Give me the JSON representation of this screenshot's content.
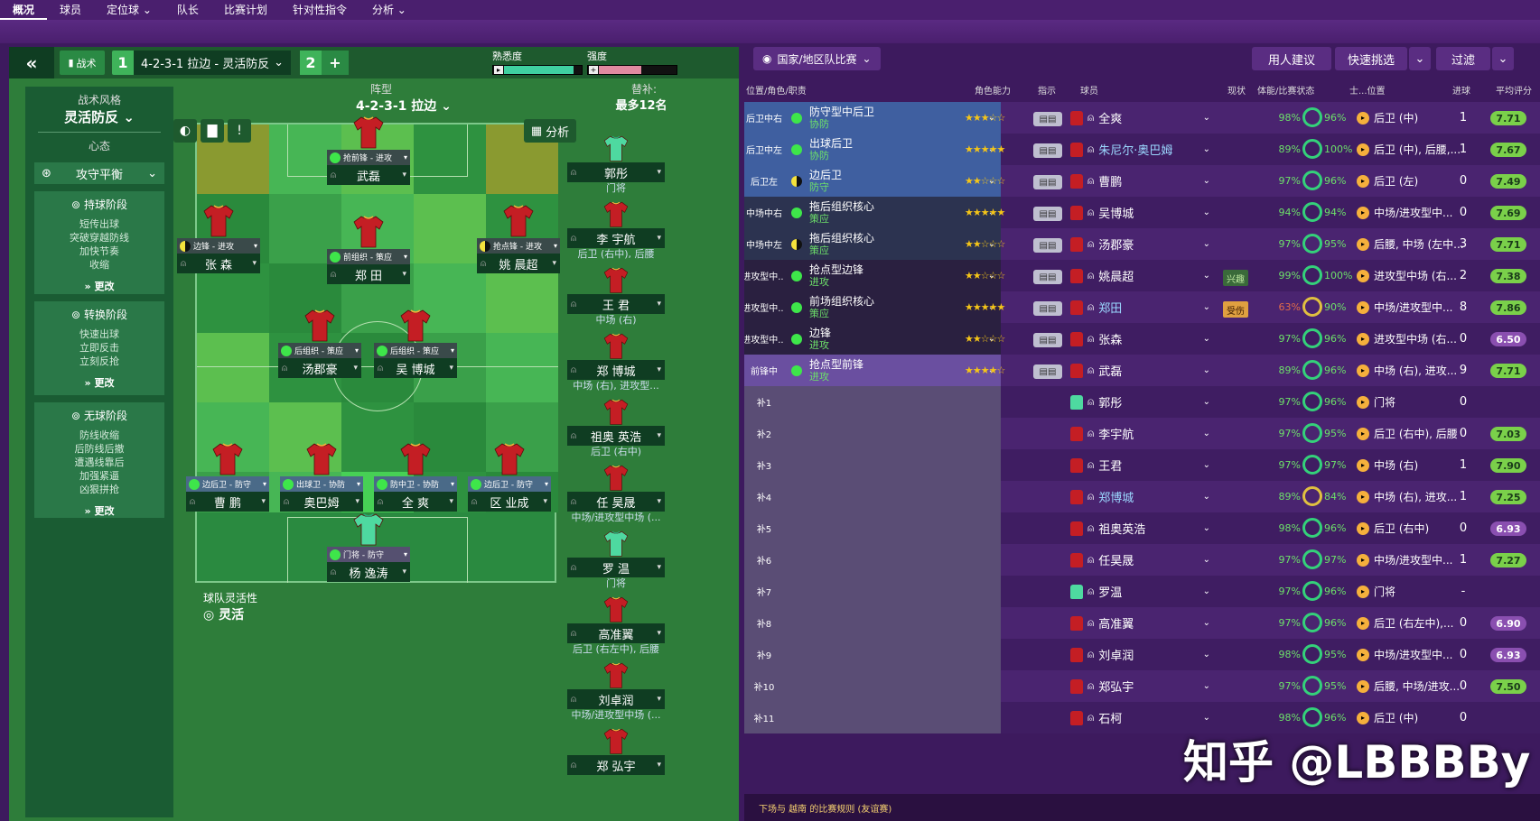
{
  "nav": {
    "items": [
      "概况",
      "球员",
      "定位球",
      "队长",
      "比赛计划",
      "针对性指令",
      "分析"
    ]
  },
  "tactic": {
    "tab_label": "战术",
    "slot1": "1",
    "name": "4-2-3-1 拉边 - 灵活防反",
    "slot2": "2",
    "add": "+",
    "familiarity_label": "熟悉度",
    "intensity_label": "强度",
    "familiarity_value": 0.9,
    "intensity_value": 0.55,
    "style_label": "战术风格",
    "style_value": "灵活防反",
    "mentality_label": "心态",
    "mentality_value": "攻守平衡",
    "phases": [
      {
        "title": "持球阶段",
        "lines": [
          "短传出球",
          "突破穿越防线",
          "加快节奏",
          "收缩"
        ],
        "change": "更改"
      },
      {
        "title": "转换阶段",
        "lines": [
          "快速出球",
          "立即反击",
          "立刻反抢"
        ],
        "change": "更改"
      },
      {
        "title": "无球阶段",
        "lines": [
          "防线收缩",
          "后防线后撤",
          "遭遇线靠后",
          "加强紧逼",
          "凶狠拼抢"
        ],
        "change": "更改"
      }
    ],
    "formation_label": "阵型",
    "formation_value": "4-2-3-1 拉边",
    "analysis_label": "分析",
    "fluidity_label": "球队灵活性",
    "fluidity_value": "灵活",
    "subs_label": "替补:",
    "subs_max": "最多12名"
  },
  "pitch_players": [
    {
      "role": "抢前锋 - 进攻",
      "name": "武磊",
      "dot": "full",
      "kind": "mid"
    },
    {
      "role": "边锋 - 进攻",
      "name": "张 森",
      "dot": "half",
      "kind": "att"
    },
    {
      "role": "前组织 - 策应",
      "name": "郑 田",
      "dot": "full",
      "kind": "mid"
    },
    {
      "role": "抢点锋 - 进攻",
      "name": "姚 晨超",
      "dot": "half",
      "kind": "att"
    },
    {
      "role": "后组织 - 策应",
      "name": "汤郡豪",
      "dot": "full",
      "kind": "mid"
    },
    {
      "role": "后组织 - 策应",
      "name": "吴 博城",
      "dot": "full",
      "kind": "mid"
    },
    {
      "role": "边后卫 - 防守",
      "name": "曹 鹏",
      "dot": "full",
      "kind": "def"
    },
    {
      "role": "出球卫 - 协防",
      "name": "奥巴姆",
      "dot": "full",
      "kind": "def"
    },
    {
      "role": "防中卫 - 协防",
      "name": "全 爽",
      "dot": "full",
      "kind": "def"
    },
    {
      "role": "边后卫 - 防守",
      "name": "区 业成",
      "dot": "full",
      "kind": "def"
    },
    {
      "role": "门将 - 防守",
      "name": "杨 逸涛",
      "dot": "full",
      "kind": "gk"
    }
  ],
  "bench": [
    {
      "name": "郭彤",
      "pos": "门将",
      "gk": true
    },
    {
      "name": "李 宇航",
      "pos": "后卫 (右中), 后腰",
      "gk": false
    },
    {
      "name": "王 君",
      "pos": "中场 (右)",
      "gk": false
    },
    {
      "name": "郑 博城",
      "pos": "中场 (右), 进攻型...",
      "gk": false
    },
    {
      "name": "祖奥 英浩",
      "pos": "后卫 (右中)",
      "gk": false
    },
    {
      "name": "任 昊晟",
      "pos": "中场/进攻型中场 (...",
      "gk": false
    },
    {
      "name": "罗 温",
      "pos": "门将",
      "gk": true
    },
    {
      "name": "高准翼",
      "pos": "后卫 (右左中), 后腰",
      "gk": false
    },
    {
      "name": "刘卓润",
      "pos": "中场/进攻型中场 (...",
      "gk": false
    },
    {
      "name": "郑 弘宇",
      "pos": "",
      "gk": false
    }
  ],
  "squad": {
    "competition": "国家/地区队比赛",
    "btn_advice": "用人建议",
    "btn_quick": "快速挑选",
    "btn_filter": "过滤",
    "headers": {
      "pos": "位置/角色/职责",
      "ability": "角色能力",
      "instr": "指示",
      "player": "球员",
      "state": "现状",
      "cond": "体能/比赛状态",
      "ppos": "士...位置",
      "goals": "进球",
      "rating": "平均评分"
    },
    "rows": [
      {
        "pos": "后卫中右",
        "role": "防守型中后卫",
        "duty": "协防",
        "stars": 3,
        "half": false,
        "player": "全爽",
        "hl": false,
        "state": "",
        "cond": "98%",
        "sharp": "96%",
        "ppos": "后卫 (中)",
        "goals": "1",
        "rating": "7.71",
        "band": "def"
      },
      {
        "pos": "后卫中左",
        "role": "出球后卫",
        "duty": "协防",
        "stars": 5,
        "half": false,
        "player": "朱尼尔·奥巴姆",
        "hl": true,
        "state": "",
        "cond": "89%",
        "sharp": "100%",
        "ppos": "后卫 (中), 后腰,...",
        "goals": "1",
        "rating": "7.67",
        "band": "def"
      },
      {
        "pos": "后卫左",
        "role": "边后卫",
        "duty": "防守",
        "stars": 2,
        "half": true,
        "player": "曹鹏",
        "hl": false,
        "state": "",
        "cond": "97%",
        "sharp": "96%",
        "ppos": "后卫 (左)",
        "goals": "0",
        "rating": "7.49",
        "band": "def"
      },
      {
        "pos": "中场中右",
        "role": "拖后组织核心",
        "duty": "策应",
        "stars": 5,
        "half": false,
        "player": "吴博城",
        "hl": false,
        "state": "",
        "cond": "94%",
        "sharp": "94%",
        "ppos": "中场/进攻型中...",
        "goals": "0",
        "rating": "7.69",
        "band": "mid"
      },
      {
        "pos": "中场中左",
        "role": "拖后组织核心",
        "duty": "策应",
        "stars": 2,
        "half": true,
        "player": "汤郡豪",
        "hl": false,
        "state": "",
        "cond": "97%",
        "sharp": "95%",
        "ppos": "后腰, 中场 (左中...",
        "goals": "3",
        "rating": "7.71",
        "band": "mid"
      },
      {
        "pos": "进攻型中...",
        "role": "抢点型边锋",
        "duty": "进攻",
        "stars": 2,
        "half": false,
        "player": "姚晨超",
        "hl": false,
        "state": "兴趣",
        "cond": "99%",
        "sharp": "100%",
        "ppos": "进攻型中场 (右...",
        "goals": "2",
        "rating": "7.38",
        "band": "att"
      },
      {
        "pos": "进攻型中...",
        "role": "前场组织核心",
        "duty": "策应",
        "stars": 5,
        "half": false,
        "player": "郑田",
        "hl": true,
        "state": "受伤",
        "cond": "63%",
        "sharp": "90%",
        "ppos": "中场/进攻型中...",
        "goals": "8",
        "rating": "7.86",
        "band": "att"
      },
      {
        "pos": "进攻型中...",
        "role": "边锋",
        "duty": "进攻",
        "stars": 2,
        "half": false,
        "player": "张森",
        "hl": false,
        "state": "",
        "cond": "97%",
        "sharp": "96%",
        "ppos": "进攻型中场 (右...",
        "goals": "0",
        "rating": "6.50",
        "band": "att"
      },
      {
        "pos": "前锋中",
        "role": "抢点型前锋",
        "duty": "进攻",
        "stars": 4,
        "half": false,
        "player": "武磊",
        "hl": false,
        "state": "",
        "cond": "89%",
        "sharp": "96%",
        "ppos": "中场 (右), 进攻...",
        "goals": "9",
        "rating": "7.71",
        "band": "fw"
      },
      {
        "pos": "补1",
        "role": "",
        "duty": "",
        "stars": 0,
        "half": false,
        "player": "郭彤",
        "hl": false,
        "state": "",
        "cond": "97%",
        "sharp": "96%",
        "ppos": "门将",
        "goals": "0",
        "rating": "",
        "band": "sub",
        "gk": true
      },
      {
        "pos": "补2",
        "role": "",
        "duty": "",
        "stars": 0,
        "half": false,
        "player": "李宇航",
        "hl": false,
        "state": "",
        "cond": "97%",
        "sharp": "95%",
        "ppos": "后卫 (右中), 后腰",
        "goals": "0",
        "rating": "7.03",
        "band": "sub"
      },
      {
        "pos": "补3",
        "role": "",
        "duty": "",
        "stars": 0,
        "half": false,
        "player": "王君",
        "hl": false,
        "state": "",
        "cond": "97%",
        "sharp": "97%",
        "ppos": "中场 (右)",
        "goals": "1",
        "rating": "7.90",
        "band": "sub"
      },
      {
        "pos": "补4",
        "role": "",
        "duty": "",
        "stars": 0,
        "half": false,
        "player": "郑博城",
        "hl": true,
        "state": "",
        "cond": "89%",
        "sharp": "84%",
        "ppos": "中场 (右), 进攻...",
        "goals": "1",
        "rating": "7.25",
        "band": "sub"
      },
      {
        "pos": "补5",
        "role": "",
        "duty": "",
        "stars": 0,
        "half": false,
        "player": "祖奥英浩",
        "hl": false,
        "state": "",
        "cond": "98%",
        "sharp": "96%",
        "ppos": "后卫 (右中)",
        "goals": "0",
        "rating": "6.93",
        "band": "sub"
      },
      {
        "pos": "补6",
        "role": "",
        "duty": "",
        "stars": 0,
        "half": false,
        "player": "任昊晟",
        "hl": false,
        "state": "",
        "cond": "97%",
        "sharp": "97%",
        "ppos": "中场/进攻型中...",
        "goals": "1",
        "rating": "7.27",
        "band": "sub"
      },
      {
        "pos": "补7",
        "role": "",
        "duty": "",
        "stars": 0,
        "half": false,
        "player": "罗温",
        "hl": false,
        "state": "",
        "cond": "97%",
        "sharp": "96%",
        "ppos": "门将",
        "goals": "-",
        "rating": "",
        "band": "sub",
        "gk": true
      },
      {
        "pos": "补8",
        "role": "",
        "duty": "",
        "stars": 0,
        "half": false,
        "player": "高准翼",
        "hl": false,
        "state": "",
        "cond": "97%",
        "sharp": "96%",
        "ppos": "后卫 (右左中),...",
        "goals": "0",
        "rating": "6.90",
        "band": "sub"
      },
      {
        "pos": "补9",
        "role": "",
        "duty": "",
        "stars": 0,
        "half": false,
        "player": "刘卓润",
        "hl": false,
        "state": "",
        "cond": "98%",
        "sharp": "95%",
        "ppos": "中场/进攻型中...",
        "goals": "0",
        "rating": "6.93",
        "band": "sub"
      },
      {
        "pos": "补10",
        "role": "",
        "duty": "",
        "stars": 0,
        "half": false,
        "player": "郑弘宇",
        "hl": false,
        "state": "",
        "cond": "97%",
        "sharp": "95%",
        "ppos": "后腰, 中场/进攻...",
        "goals": "0",
        "rating": "7.50",
        "band": "sub"
      },
      {
        "pos": "补11",
        "role": "",
        "duty": "",
        "stars": 0,
        "half": false,
        "player": "石柯",
        "hl": false,
        "state": "",
        "cond": "98%",
        "sharp": "96%",
        "ppos": "后卫 (中)",
        "goals": "0",
        "rating": "",
        "band": "sub"
      }
    ],
    "footer": "下场与 越南 的比赛规则 (友谊赛)"
  },
  "watermark": "知乎 @LBBBBy",
  "colors": {
    "pitch": "#2a8a40",
    "panel": "#3d1a5e",
    "accent_green": "#3ee64a"
  }
}
